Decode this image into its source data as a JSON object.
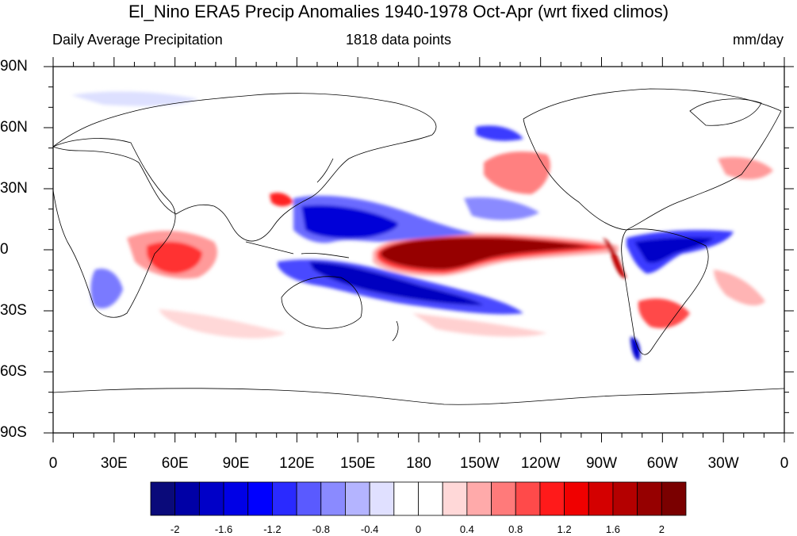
{
  "title": "El_Nino ERA5 Precip Anomalies 1940-1978 Oct-Apr (wrt fixed climos)",
  "subtitle_left": "Daily Average Precipitation",
  "subtitle_center": "1818 data points",
  "subtitle_right": "mm/day",
  "lat_labels": [
    "90N",
    "60N",
    "30N",
    "0",
    "30S",
    "60S",
    "90S"
  ],
  "lon_labels": [
    "0",
    "30E",
    "60E",
    "90E",
    "120E",
    "150E",
    "180",
    "150W",
    "120W",
    "90W",
    "60W",
    "30W",
    "0"
  ],
  "colorbar": {
    "colors": [
      "#0a0a7a",
      "#0000a6",
      "#0000c8",
      "#0000e6",
      "#0000ff",
      "#2a2aff",
      "#5a5aff",
      "#8a8aff",
      "#b4b4ff",
      "#e0e0ff",
      "#ffffff",
      "#ffffff",
      "#ffd8d8",
      "#ffaaaa",
      "#ff7a7a",
      "#ff4a4a",
      "#ff1a1a",
      "#f00000",
      "#d40000",
      "#b40000",
      "#960000",
      "#7a0000"
    ],
    "labels": [
      "-2",
      "-1.6",
      "-1.2",
      "-0.8",
      "-0.4",
      "0",
      "0.4",
      "0.8",
      "1.2",
      "1.6",
      "2"
    ]
  }
}
